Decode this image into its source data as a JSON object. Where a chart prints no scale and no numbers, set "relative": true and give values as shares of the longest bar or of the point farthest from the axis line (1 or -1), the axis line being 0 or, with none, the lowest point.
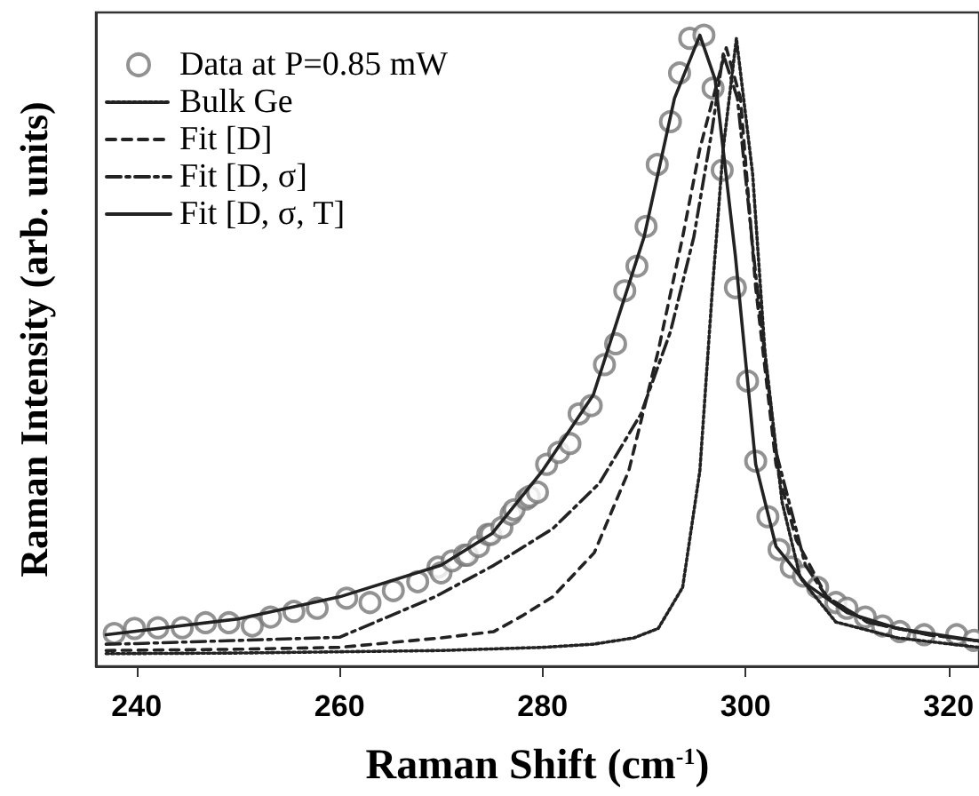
{
  "chart_data": {
    "type": "line",
    "xlabel": "Raman Shift (cm$^{-1}$)",
    "ylabel": "Raman Intensity (arb. units)",
    "relative": true,
    "xlim": [
      236,
      323
    ],
    "xticks": [
      240,
      260,
      280,
      300,
      320
    ],
    "grid": false,
    "legend": "top left",
    "series": [
      {
        "name": "Data at P=0.85 mW",
        "type": "scatter",
        "marker": "circle",
        "color": "#777777",
        "x": [
          237.8,
          239.8,
          242.1,
          244.5,
          246.8,
          249.1,
          251.4,
          253.2,
          255.5,
          257.8,
          260.7,
          263.0,
          265.3,
          267.7,
          269.7,
          270.0,
          271.1,
          272.3,
          272.6,
          273.7,
          274.6,
          274.9,
          276.0,
          276.9,
          277.2,
          278.4,
          278.7,
          279.5,
          280.4,
          281.6,
          282.7,
          283.6,
          284.8,
          286.1,
          287.2,
          288.1,
          289.3,
          290.2,
          291.3,
          292.6,
          293.5,
          294.5,
          295.9,
          296.8,
          297.7,
          299.0,
          300.2,
          301.0,
          302.2,
          303.3,
          304.5,
          305.7,
          307.1,
          308.9,
          310.0,
          311.8,
          313.5,
          315.2,
          317.6,
          320.8,
          322.5
        ],
        "values": [
          0.052,
          0.06,
          0.061,
          0.061,
          0.069,
          0.069,
          0.064,
          0.078,
          0.087,
          0.092,
          0.108,
          0.101,
          0.12,
          0.134,
          0.157,
          0.148,
          0.167,
          0.176,
          0.176,
          0.19,
          0.209,
          0.209,
          0.22,
          0.241,
          0.248,
          0.265,
          0.269,
          0.276,
          0.32,
          0.339,
          0.353,
          0.4,
          0.413,
          0.478,
          0.511,
          0.595,
          0.634,
          0.697,
          0.795,
          0.863,
          0.94,
          0.995,
          1.0,
          0.916,
          0.786,
          0.6,
          0.452,
          0.325,
          0.237,
          0.185,
          0.157,
          0.143,
          0.125,
          0.101,
          0.092,
          0.078,
          0.064,
          0.055,
          0.05,
          0.05,
          0.041
        ]
      },
      {
        "name": "Bulk Ge",
        "type": "line",
        "marker": "none",
        "line_style": "dotted",
        "color": "#222222",
        "x": [
          237,
          250,
          260,
          270,
          280,
          285,
          289,
          291.4,
          293.8,
          295.5,
          296.7,
          297.8,
          299.1,
          300.7,
          301.9,
          303.6,
          305.4,
          308.9,
          315,
          323
        ],
        "values": [
          0.02,
          0.021,
          0.023,
          0.025,
          0.03,
          0.035,
          0.045,
          0.06,
          0.125,
          0.31,
          0.59,
          0.82,
          0.995,
          0.78,
          0.5,
          0.26,
          0.14,
          0.07,
          0.045,
          0.03
        ]
      },
      {
        "name": "Fit [D]",
        "type": "line",
        "marker": "none",
        "line_style": "dashed",
        "color": "#222222",
        "x": [
          237,
          250,
          260,
          270,
          275.2,
          278,
          281,
          285.1,
          288.5,
          291.4,
          293.8,
          295.5,
          298.1,
          299.5,
          301,
          303,
          305,
          308,
          312,
          318,
          323
        ],
        "values": [
          0.025,
          0.027,
          0.03,
          0.045,
          0.055,
          0.08,
          0.11,
          0.18,
          0.31,
          0.5,
          0.68,
          0.82,
          0.98,
          0.9,
          0.6,
          0.32,
          0.2,
          0.11,
          0.07,
          0.05,
          0.04
        ]
      },
      {
        "name": "Fit [D, σ]",
        "type": "line",
        "marker": "none",
        "line_style": "dashdot",
        "color": "#222222",
        "x": [
          237,
          240,
          260,
          269.4,
          275.2,
          281,
          285.6,
          289.7,
          292.6,
          294.9,
          296.7,
          297.8,
          299.2,
          301,
          303,
          305.9,
          308,
          312,
          318,
          323
        ],
        "values": [
          0.035,
          0.036,
          0.046,
          0.11,
          0.16,
          0.218,
          0.29,
          0.4,
          0.53,
          0.68,
          0.85,
          0.97,
          0.9,
          0.62,
          0.34,
          0.16,
          0.11,
          0.07,
          0.05,
          0.04
        ]
      },
      {
        "name": "Fit [D, σ, T]",
        "type": "line",
        "marker": "none",
        "line_style": "solid",
        "color": "#222222",
        "x": [
          237,
          250,
          260,
          270,
          275,
          280,
          285,
          290,
          293,
          295.5,
          297,
          299,
          301,
          303,
          306,
          310,
          315,
          323
        ],
        "values": [
          0.05,
          0.075,
          0.11,
          0.16,
          0.21,
          0.31,
          0.43,
          0.68,
          0.9,
          1.0,
          0.93,
          0.65,
          0.32,
          0.19,
          0.13,
          0.085,
          0.06,
          0.04
        ]
      }
    ]
  }
}
